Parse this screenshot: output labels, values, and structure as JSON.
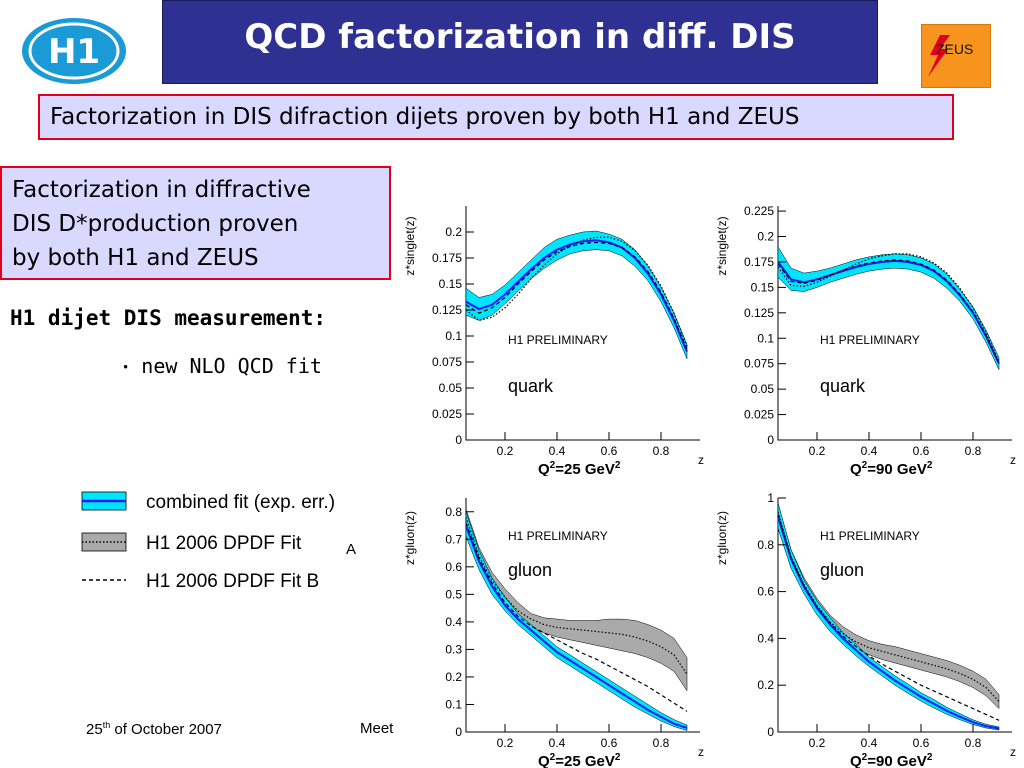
{
  "header": {
    "title": "QCD factorization in diff. DIS",
    "left_logo": "H1",
    "right_logo": "ZEUS"
  },
  "box1": {
    "text": "Factorization in DIS difraction dijets proven by both H1 and ZEUS"
  },
  "box2": {
    "lines": [
      "Factorization in diffractive",
      "DIS D*production proven",
      "by both H1 and ZEUS"
    ]
  },
  "dijet_heading": "H1 dijet DIS measurement:",
  "bullet": "new NLO QCD fit",
  "legend": {
    "items": [
      {
        "label": "combined fit (exp. err.)",
        "style": "band-solid",
        "color": "#00e5ff"
      },
      {
        "label": "H1 2006 DPDF Fit",
        "suffix": "A",
        "style": "band-dotted",
        "color": "#aaaaaa"
      },
      {
        "label": "H1 2006 DPDF Fit B",
        "style": "dashed",
        "color": "#000000"
      }
    ]
  },
  "footer": {
    "date_day": "25",
    "date_sup": "th",
    "date_rest": " of October 2007",
    "meeting_fragment": "Meet"
  },
  "colors": {
    "band": "#00e5ff",
    "fit": "#1a1aff",
    "grey_band": "#aaaaaa",
    "title_bg": "#2e3192",
    "box_bg": "#d9d9ff",
    "box_border": "#e0001b"
  },
  "chart_data": [
    {
      "type": "line",
      "ylabel": "z*singlet(z)",
      "xlabel": "z",
      "q2_label": "25",
      "q2_unit": "GeV",
      "preliminary": "H1 PRELIMINARY",
      "parton": "quark",
      "xlim": [
        0.05,
        0.95
      ],
      "ylim": [
        0,
        0.225
      ],
      "yticks": [
        0,
        0.025,
        0.05,
        0.075,
        0.1,
        0.125,
        0.15,
        0.175,
        0.2
      ],
      "ytick_labels": [
        "0",
        "0.025",
        "0.05",
        "0.075",
        "0.1",
        "0.125",
        "0.15",
        "0.175",
        "0.2"
      ],
      "xticks": [
        0.2,
        0.4,
        0.6,
        0.8
      ],
      "xtick_labels": [
        "0.2",
        "0.4",
        "0.6",
        "0.8"
      ],
      "x": [
        0.05,
        0.1,
        0.15,
        0.2,
        0.25,
        0.3,
        0.35,
        0.4,
        0.45,
        0.5,
        0.55,
        0.6,
        0.65,
        0.7,
        0.75,
        0.8,
        0.85,
        0.9
      ],
      "series": [
        {
          "name": "combined fit (exp. err.)",
          "values": [
            0.133,
            0.126,
            0.13,
            0.14,
            0.152,
            0.164,
            0.175,
            0.183,
            0.188,
            0.191,
            0.192,
            0.19,
            0.185,
            0.175,
            0.16,
            0.14,
            0.115,
            0.085
          ],
          "lower": [
            0.12,
            0.115,
            0.12,
            0.131,
            0.143,
            0.155,
            0.165,
            0.173,
            0.179,
            0.182,
            0.183,
            0.182,
            0.177,
            0.167,
            0.153,
            0.133,
            0.108,
            0.078
          ],
          "upper": [
            0.146,
            0.137,
            0.14,
            0.149,
            0.161,
            0.173,
            0.185,
            0.193,
            0.197,
            0.2,
            0.201,
            0.198,
            0.193,
            0.183,
            0.167,
            0.147,
            0.122,
            0.092
          ]
        },
        {
          "name": "H1 2006 DPDF Fit A",
          "values": [
            0.125,
            0.115,
            0.118,
            0.127,
            0.14,
            0.155,
            0.168,
            0.179,
            0.187,
            0.192,
            0.195,
            0.195,
            0.191,
            0.182,
            0.168,
            0.148,
            0.122,
            0.09
          ]
        },
        {
          "name": "H1 2006 DPDF Fit B",
          "values": [
            0.13,
            0.122,
            0.127,
            0.137,
            0.15,
            0.162,
            0.173,
            0.181,
            0.186,
            0.189,
            0.19,
            0.189,
            0.185,
            0.176,
            0.162,
            0.142,
            0.117,
            0.087
          ]
        }
      ]
    },
    {
      "type": "line",
      "ylabel": "z*singlet(z)",
      "xlabel": "z",
      "q2_label": "90",
      "q2_unit": "GeV",
      "preliminary": "H1 PRELIMINARY",
      "parton": "quark",
      "xlim": [
        0.05,
        0.95
      ],
      "ylim": [
        0,
        0.23
      ],
      "yticks": [
        0,
        0.025,
        0.05,
        0.075,
        0.1,
        0.125,
        0.15,
        0.175,
        0.2,
        0.225
      ],
      "ytick_labels": [
        "0",
        "0.025",
        "0.05",
        "0.075",
        "0.1",
        "0.125",
        "0.15",
        "0.175",
        "0.2",
        "0.225"
      ],
      "xticks": [
        0.2,
        0.4,
        0.6,
        0.8
      ],
      "xtick_labels": [
        "0.2",
        "0.4",
        "0.6",
        "0.8"
      ],
      "x": [
        0.05,
        0.1,
        0.15,
        0.2,
        0.25,
        0.3,
        0.35,
        0.4,
        0.45,
        0.5,
        0.55,
        0.6,
        0.65,
        0.7,
        0.75,
        0.8,
        0.85,
        0.9
      ],
      "series": [
        {
          "name": "combined fit (exp. err.)",
          "values": [
            0.175,
            0.158,
            0.155,
            0.158,
            0.162,
            0.166,
            0.17,
            0.173,
            0.175,
            0.176,
            0.175,
            0.172,
            0.166,
            0.156,
            0.142,
            0.125,
            0.102,
            0.075
          ],
          "lower": [
            0.16,
            0.147,
            0.146,
            0.15,
            0.155,
            0.159,
            0.163,
            0.166,
            0.168,
            0.169,
            0.168,
            0.165,
            0.159,
            0.149,
            0.136,
            0.119,
            0.096,
            0.069
          ],
          "upper": [
            0.19,
            0.169,
            0.164,
            0.166,
            0.169,
            0.173,
            0.177,
            0.18,
            0.182,
            0.183,
            0.182,
            0.179,
            0.173,
            0.163,
            0.148,
            0.131,
            0.108,
            0.081
          ]
        },
        {
          "name": "H1 2006 DPDF Fit A",
          "values": [
            0.17,
            0.152,
            0.151,
            0.155,
            0.161,
            0.167,
            0.173,
            0.178,
            0.181,
            0.183,
            0.183,
            0.18,
            0.174,
            0.164,
            0.149,
            0.13,
            0.106,
            0.077
          ]
        },
        {
          "name": "H1 2006 DPDF Fit B",
          "values": [
            0.173,
            0.156,
            0.154,
            0.157,
            0.162,
            0.167,
            0.171,
            0.174,
            0.176,
            0.177,
            0.176,
            0.173,
            0.167,
            0.157,
            0.143,
            0.126,
            0.103,
            0.075
          ]
        }
      ]
    },
    {
      "type": "line",
      "ylabel": "z*gluon(z)",
      "xlabel": "z",
      "q2_label": "25",
      "q2_unit": "GeV",
      "preliminary": "H1 PRELIMINARY",
      "parton": "gluon",
      "xlim": [
        0.05,
        0.95
      ],
      "ylim": [
        0,
        0.85
      ],
      "yticks": [
        0,
        0.1,
        0.2,
        0.3,
        0.4,
        0.5,
        0.6,
        0.7,
        0.8
      ],
      "ytick_labels": [
        "0",
        "0.1",
        "0.2",
        "0.3",
        "0.4",
        "0.5",
        "0.6",
        "0.7",
        "0.8"
      ],
      "xticks": [
        0.2,
        0.4,
        0.6,
        0.8
      ],
      "xtick_labels": [
        "0.2",
        "0.4",
        "0.6",
        "0.8"
      ],
      "x": [
        0.05,
        0.1,
        0.15,
        0.2,
        0.25,
        0.3,
        0.35,
        0.4,
        0.45,
        0.5,
        0.55,
        0.6,
        0.65,
        0.7,
        0.75,
        0.8,
        0.85,
        0.9
      ],
      "series": [
        {
          "name": "combined fit (exp. err.)",
          "values": [
            0.75,
            0.62,
            0.53,
            0.46,
            0.41,
            0.37,
            0.33,
            0.29,
            0.26,
            0.23,
            0.2,
            0.17,
            0.14,
            0.11,
            0.08,
            0.055,
            0.03,
            0.015
          ],
          "lower": [
            0.71,
            0.59,
            0.5,
            0.44,
            0.39,
            0.35,
            0.31,
            0.27,
            0.24,
            0.21,
            0.18,
            0.15,
            0.12,
            0.09,
            0.065,
            0.04,
            0.02,
            0.005
          ],
          "upper": [
            0.8,
            0.66,
            0.56,
            0.49,
            0.43,
            0.39,
            0.35,
            0.31,
            0.28,
            0.25,
            0.22,
            0.19,
            0.16,
            0.13,
            0.1,
            0.07,
            0.045,
            0.025
          ]
        },
        {
          "name": "H1 2006 DPDF Fit A",
          "values": [
            0.78,
            0.64,
            0.55,
            0.49,
            0.44,
            0.41,
            0.39,
            0.38,
            0.375,
            0.37,
            0.365,
            0.36,
            0.355,
            0.345,
            0.33,
            0.31,
            0.28,
            0.21
          ],
          "lower": [
            0.75,
            0.61,
            0.52,
            0.46,
            0.41,
            0.38,
            0.36,
            0.345,
            0.335,
            0.325,
            0.315,
            0.305,
            0.295,
            0.285,
            0.27,
            0.25,
            0.22,
            0.15
          ],
          "upper": [
            0.81,
            0.67,
            0.58,
            0.52,
            0.47,
            0.43,
            0.415,
            0.41,
            0.405,
            0.405,
            0.405,
            0.41,
            0.41,
            0.405,
            0.39,
            0.37,
            0.34,
            0.27
          ]
        },
        {
          "name": "H1 2006 DPDF Fit B",
          "values": [
            0.76,
            0.63,
            0.54,
            0.47,
            0.42,
            0.385,
            0.36,
            0.335,
            0.31,
            0.285,
            0.265,
            0.24,
            0.215,
            0.19,
            0.165,
            0.135,
            0.105,
            0.075
          ]
        }
      ]
    },
    {
      "type": "line",
      "ylabel": "z*gluon(z)",
      "xlabel": "z",
      "q2_label": "90",
      "q2_unit": "GeV",
      "preliminary": "H1 PRELIMINARY",
      "parton": "gluon",
      "xlim": [
        0.05,
        0.95
      ],
      "ylim": [
        0,
        1.0
      ],
      "yticks": [
        0,
        0.2,
        0.4,
        0.6,
        0.8,
        1
      ],
      "ytick_labels": [
        "0",
        "0.2",
        "0.4",
        "0.6",
        "0.8",
        "1"
      ],
      "xticks": [
        0.2,
        0.4,
        0.6,
        0.8
      ],
      "xtick_labels": [
        "0.2",
        "0.4",
        "0.6",
        "0.8"
      ],
      "x": [
        0.05,
        0.1,
        0.15,
        0.2,
        0.25,
        0.3,
        0.35,
        0.4,
        0.45,
        0.5,
        0.55,
        0.6,
        0.65,
        0.7,
        0.75,
        0.8,
        0.85,
        0.9
      ],
      "series": [
        {
          "name": "combined fit (exp. err.)",
          "values": [
            0.92,
            0.74,
            0.62,
            0.53,
            0.46,
            0.4,
            0.35,
            0.3,
            0.26,
            0.22,
            0.185,
            0.15,
            0.12,
            0.09,
            0.065,
            0.042,
            0.025,
            0.015
          ],
          "lower": [
            0.87,
            0.7,
            0.59,
            0.5,
            0.43,
            0.375,
            0.325,
            0.28,
            0.24,
            0.2,
            0.165,
            0.132,
            0.102,
            0.075,
            0.052,
            0.032,
            0.017,
            0.008
          ],
          "upper": [
            0.98,
            0.78,
            0.65,
            0.56,
            0.49,
            0.425,
            0.375,
            0.32,
            0.28,
            0.24,
            0.205,
            0.168,
            0.138,
            0.105,
            0.078,
            0.052,
            0.033,
            0.022
          ]
        },
        {
          "name": "H1 2006 DPDF Fit A",
          "values": [
            0.94,
            0.75,
            0.63,
            0.54,
            0.47,
            0.42,
            0.385,
            0.36,
            0.345,
            0.33,
            0.315,
            0.3,
            0.285,
            0.27,
            0.25,
            0.225,
            0.19,
            0.13
          ],
          "lower": [
            0.91,
            0.72,
            0.6,
            0.51,
            0.44,
            0.39,
            0.355,
            0.33,
            0.31,
            0.295,
            0.28,
            0.265,
            0.25,
            0.235,
            0.215,
            0.19,
            0.155,
            0.1
          ],
          "upper": [
            0.97,
            0.78,
            0.66,
            0.57,
            0.5,
            0.45,
            0.415,
            0.39,
            0.375,
            0.365,
            0.35,
            0.335,
            0.32,
            0.305,
            0.285,
            0.26,
            0.225,
            0.16
          ]
        },
        {
          "name": "H1 2006 DPDF Fit B",
          "values": [
            0.93,
            0.745,
            0.625,
            0.535,
            0.465,
            0.41,
            0.365,
            0.325,
            0.29,
            0.26,
            0.23,
            0.2,
            0.175,
            0.15,
            0.125,
            0.1,
            0.075,
            0.05
          ]
        }
      ]
    }
  ]
}
